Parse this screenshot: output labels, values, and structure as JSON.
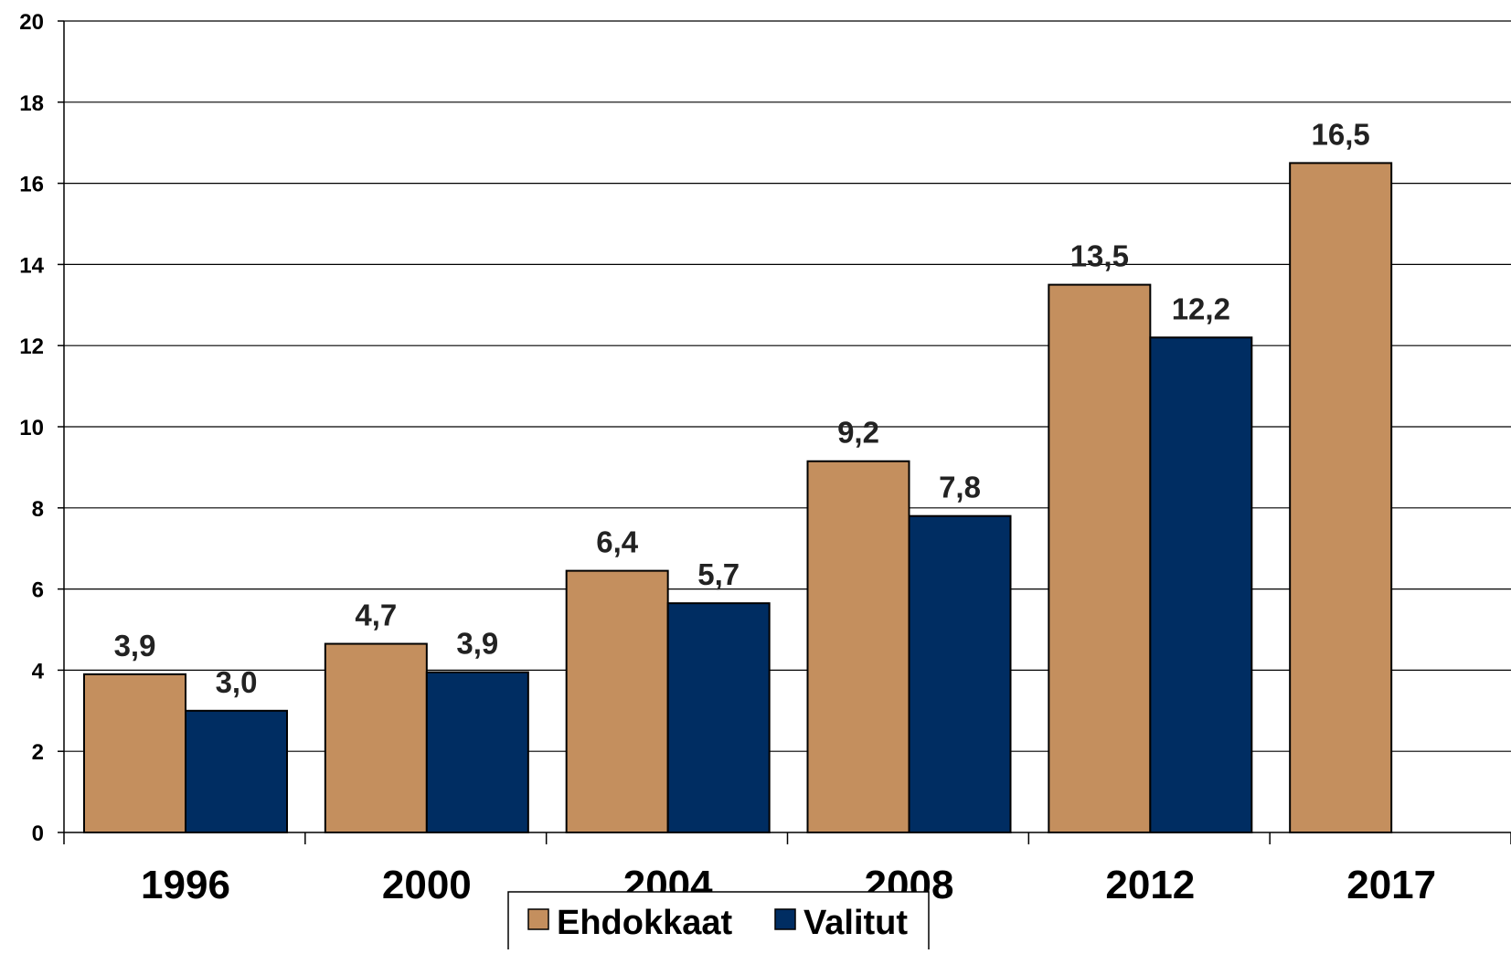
{
  "chart_data": {
    "type": "bar",
    "categories": [
      "1996",
      "2000",
      "2004",
      "2008",
      "2012",
      "2017"
    ],
    "series": [
      {
        "name": "Ehdokkaat",
        "color": "#C48F5E",
        "values": [
          3.9,
          4.65,
          6.45,
          9.15,
          13.5,
          16.5
        ],
        "labels": [
          "3,9",
          "4,7",
          "6,4",
          "9,2",
          "13,5",
          "16,5"
        ]
      },
      {
        "name": "Valitut",
        "color": "#002D62",
        "values": [
          3.0,
          3.95,
          5.65,
          7.8,
          12.2,
          null
        ],
        "labels": [
          "3,0",
          "3,9",
          "5,7",
          "7,8",
          "12,2",
          null
        ]
      }
    ],
    "ylim": [
      0,
      20
    ],
    "yticks": [
      0,
      2,
      4,
      6,
      8,
      10,
      12,
      14,
      16,
      18,
      20
    ],
    "grid": true,
    "legend_position": "bottom-center"
  }
}
